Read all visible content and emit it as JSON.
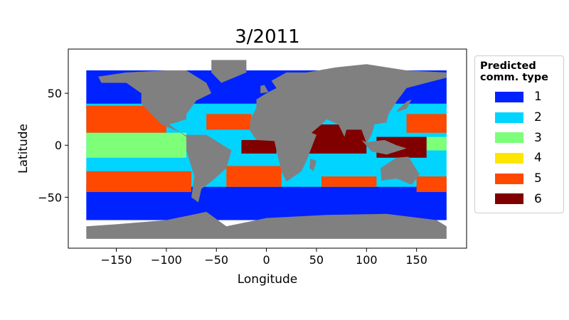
{
  "chart_data": {
    "type": "scatter",
    "title": "3/2011",
    "xlabel": "Longitude",
    "ylabel": "Latitude",
    "xlim": [
      -198,
      200
    ],
    "ylim": [
      -99,
      92.5
    ],
    "xticks": [
      -150,
      -100,
      -50,
      0,
      50,
      100,
      150
    ],
    "xtick_labels": [
      "−150",
      "−100",
      "−50",
      "0",
      "50",
      "100",
      "150"
    ],
    "yticks": [
      50,
      0,
      -50
    ],
    "ytick_labels": [
      "50",
      "0",
      "−50"
    ],
    "legend": {
      "title": "Predicted comm. type",
      "title_lines": [
        "Predicted",
        "comm. type"
      ],
      "placement": "outside-right",
      "entries": [
        {
          "label": "1",
          "color": "#0022ff"
        },
        {
          "label": "2",
          "color": "#00d4ff"
        },
        {
          "label": "3",
          "color": "#7dff7a"
        },
        {
          "label": "4",
          "color": "#ffe600"
        },
        {
          "label": "5",
          "color": "#ff4800"
        },
        {
          "label": "6",
          "color": "#800000"
        }
      ]
    },
    "land_color": "#808080",
    "regions": [
      {
        "type": 1,
        "lon": [
          -180,
          180
        ],
        "lat": [
          35,
          72
        ]
      },
      {
        "type": 1,
        "lon": [
          -180,
          180
        ],
        "lat": [
          -72,
          -38
        ]
      },
      {
        "type": 2,
        "lon": [
          -180,
          180
        ],
        "lat": [
          -40,
          40
        ]
      },
      {
        "type": 5,
        "lon": [
          -180,
          -100
        ],
        "lat": [
          12,
          38
        ]
      },
      {
        "type": 5,
        "lon": [
          -60,
          -15
        ],
        "lat": [
          15,
          30
        ]
      },
      {
        "type": 5,
        "lon": [
          140,
          180
        ],
        "lat": [
          12,
          30
        ]
      },
      {
        "type": 5,
        "lon": [
          -180,
          -75
        ],
        "lat": [
          -45,
          -25
        ]
      },
      {
        "type": 5,
        "lon": [
          -40,
          15
        ],
        "lat": [
          -40,
          -20
        ]
      },
      {
        "type": 5,
        "lon": [
          55,
          110
        ],
        "lat": [
          -40,
          -30
        ]
      },
      {
        "type": 5,
        "lon": [
          150,
          180
        ],
        "lat": [
          -45,
          -30
        ]
      },
      {
        "type": 3,
        "lon": [
          -180,
          -80
        ],
        "lat": [
          -12,
          12
        ]
      },
      {
        "type": 3,
        "lon": [
          160,
          180
        ],
        "lat": [
          -5,
          8
        ]
      },
      {
        "type": 6,
        "lon": [
          40,
          100
        ],
        "lat": [
          -8,
          20
        ]
      },
      {
        "type": 6,
        "lon": [
          -25,
          10
        ],
        "lat": [
          -8,
          5
        ]
      },
      {
        "type": 6,
        "lon": [
          110,
          160
        ],
        "lat": [
          -12,
          8
        ]
      }
    ]
  }
}
